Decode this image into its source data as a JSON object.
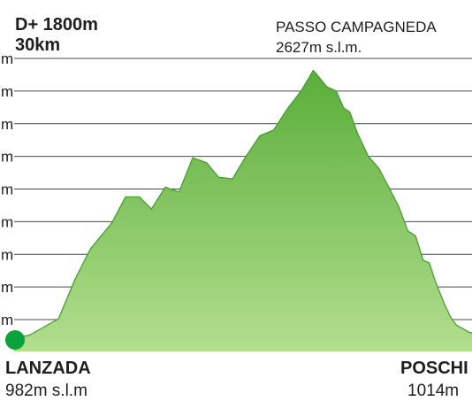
{
  "header": {
    "gain": "D+ 1800m",
    "distance": "30km"
  },
  "peak": {
    "name": "PASSO CAMPAGNEDA",
    "elevation": "2627m s.l.m."
  },
  "start": {
    "name": "LANZADA",
    "elevation": "982m s.l.m"
  },
  "end": {
    "name": "POSCHI",
    "elevation": "1014m"
  },
  "colors": {
    "fill_top": "#5aae3a",
    "fill_bottom": "#b2de8e",
    "outline": "#3f9a2a",
    "grid": "#4a4a4a",
    "marker": "#0aa33a"
  },
  "chart_data": {
    "type": "area",
    "title": "",
    "xlabel": "",
    "ylabel": "",
    "y_tick_labels": [
      "m",
      "m",
      "m",
      "m",
      "m",
      "m",
      "m",
      "m",
      "m"
    ],
    "xlim": [
      0,
      30
    ],
    "ylim": [
      900,
      2700
    ],
    "grid": true,
    "legend": "none",
    "series": [
      {
        "x": [
          0.0,
          1.0,
          2.9,
          4.0,
          5.0,
          6.4,
          7.3,
          8.2,
          9.0,
          9.9,
          10.8,
          11.7,
          12.6,
          13.4,
          14.3,
          15.2,
          16.1,
          17.0,
          17.9,
          18.8,
          19.6,
          20.5,
          21.1,
          21.6,
          22.0,
          22.5,
          23.2,
          23.9,
          24.6,
          25.2,
          25.8,
          26.3,
          26.8,
          27.2,
          27.6,
          28.2,
          28.6,
          29.0,
          29.4,
          29.8,
          30.0
        ],
        "y": [
          982,
          1000,
          1100,
          1345,
          1530,
          1690,
          1850,
          1850,
          1775,
          1910,
          1880,
          2090,
          2060,
          1970,
          1960,
          2100,
          2225,
          2260,
          2390,
          2500,
          2627,
          2525,
          2500,
          2395,
          2370,
          2240,
          2100,
          2025,
          1900,
          1790,
          1640,
          1610,
          1460,
          1445,
          1330,
          1190,
          1110,
          1060,
          1040,
          1018,
          1014
        ]
      }
    ],
    "annotations": [
      "PASSO CAMPAGNEDA",
      "2627m s.l.m.",
      "LANZADA",
      "982m s.l.m",
      "POSCHI",
      "1014m"
    ]
  }
}
